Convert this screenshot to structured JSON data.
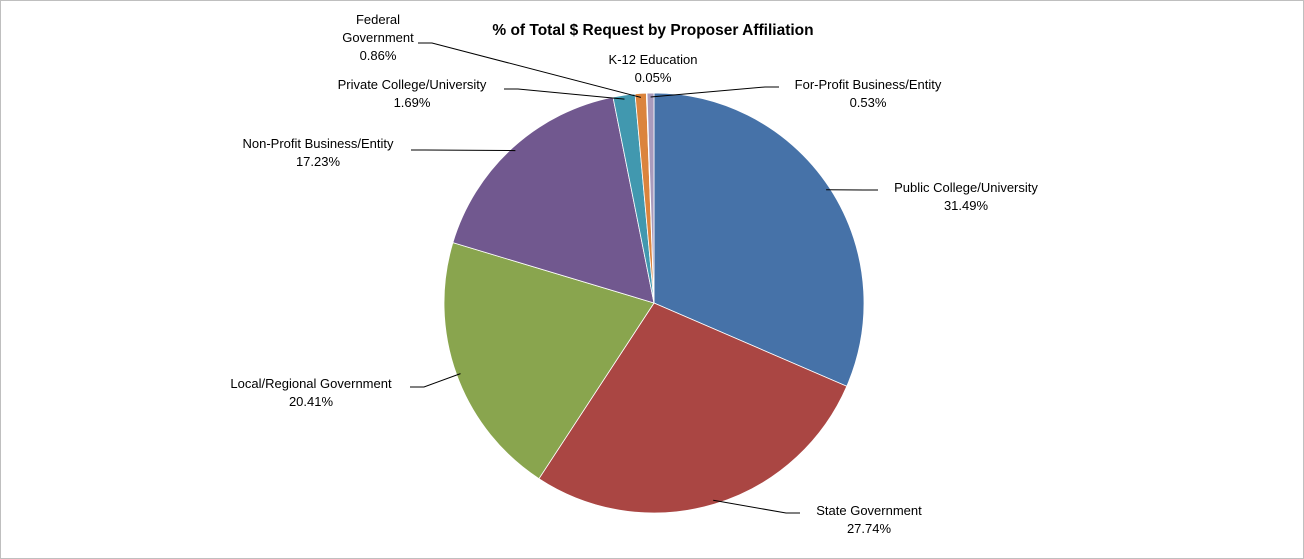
{
  "chart_data": {
    "type": "pie",
    "title": "% of Total $ Request by Proposer Affiliation",
    "slices": [
      {
        "name": "Public College/University",
        "value": 31.49,
        "label": "31.49%",
        "color": "#4672A8"
      },
      {
        "name": "State Government",
        "value": 27.74,
        "label": "27.74%",
        "color": "#AA4643"
      },
      {
        "name": "Local/Regional Government",
        "value": 20.41,
        "label": "20.41%",
        "color": "#89A54E"
      },
      {
        "name": "Non-Profit Business/Entity",
        "value": 17.23,
        "label": "17.23%",
        "color": "#71588F"
      },
      {
        "name": "Private College/University",
        "value": 1.69,
        "label": "1.69%",
        "color": "#4198AF"
      },
      {
        "name": "Federal Government",
        "value": 0.86,
        "label": "0.86%",
        "color": "#DB843D"
      },
      {
        "name": "K-12 Education",
        "value": 0.05,
        "label": "0.05%",
        "color": "#93A9CF"
      },
      {
        "name": "For-Profit Business/Entity",
        "value": 0.53,
        "label": "0.53%",
        "color": "#A99BBD"
      }
    ],
    "legend": "none",
    "data_labels": "outside with leader lines"
  }
}
